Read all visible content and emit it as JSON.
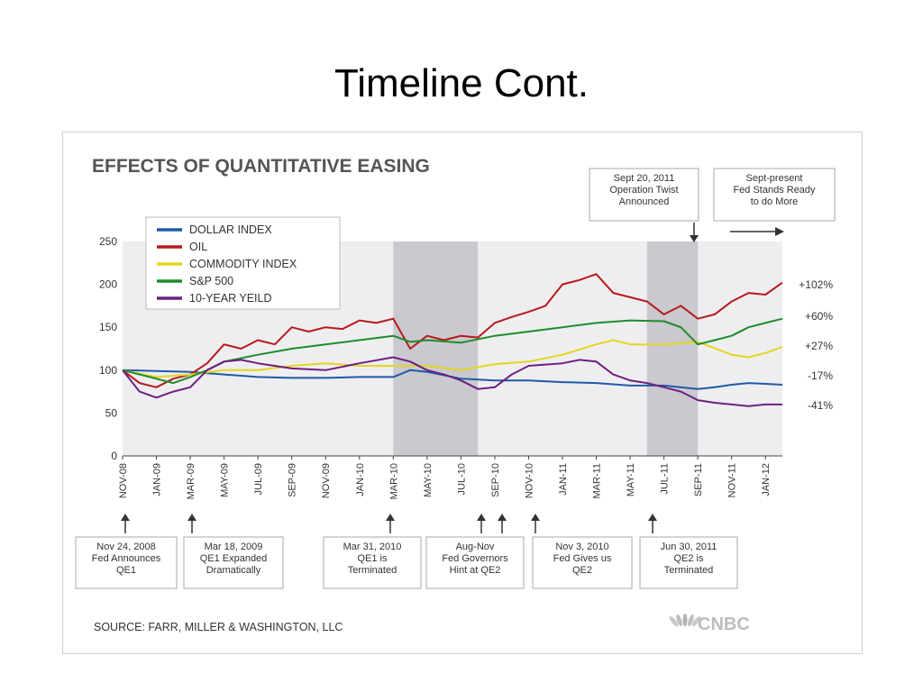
{
  "slide": {
    "title": "Timeline Cont."
  },
  "chart_data": {
    "type": "line",
    "title": "EFFECTS OF QUANTITATIVE EASING",
    "source": "SOURCE: FARR, MILLER & WASHINGTON, LLC",
    "logo": "CNBC",
    "ylim": [
      0,
      250
    ],
    "yticks": [
      "0",
      "50",
      "100",
      "150",
      "200",
      "250"
    ],
    "xticks": [
      "NOV-08",
      "JAN-09",
      "MAR-09",
      "MAY-09",
      "JUL-09",
      "SEP-09",
      "NOV-09",
      "JAN-10",
      "MAR-10",
      "MAY-10",
      "JUL-10",
      "SEP-10",
      "NOV-10",
      "JAN-11",
      "MAR-11",
      "MAY-11",
      "JUL-11",
      "SEP-11",
      "NOV-11",
      "JAN-12"
    ],
    "grid": false,
    "legend": "top-left",
    "shaded_periods": [
      {
        "from": "2010-03",
        "to": "2010-08"
      },
      {
        "from": "2011-06",
        "to": "2011-09"
      }
    ],
    "series": [
      {
        "name": "DOLLAR INDEX",
        "color": "#1f5aa6",
        "end_label": "-17%",
        "points": [
          [
            0,
            100
          ],
          [
            2,
            99
          ],
          [
            4,
            98
          ],
          [
            6,
            95
          ],
          [
            8,
            92
          ],
          [
            10,
            91
          ],
          [
            12,
            91
          ],
          [
            14,
            92
          ],
          [
            16,
            92
          ],
          [
            17,
            100
          ],
          [
            18,
            98
          ],
          [
            20,
            90
          ],
          [
            22,
            88
          ],
          [
            24,
            88
          ],
          [
            26,
            86
          ],
          [
            28,
            85
          ],
          [
            30,
            82
          ],
          [
            32,
            82
          ],
          [
            34,
            78
          ],
          [
            35,
            80
          ],
          [
            36,
            83
          ],
          [
            37,
            85
          ],
          [
            38,
            84
          ],
          [
            39,
            83
          ]
        ]
      },
      {
        "name": "OIL",
        "color": "#b8191b",
        "end_label": "+102%",
        "points": [
          [
            0,
            100
          ],
          [
            1,
            85
          ],
          [
            2,
            80
          ],
          [
            3,
            90
          ],
          [
            4,
            95
          ],
          [
            5,
            108
          ],
          [
            6,
            130
          ],
          [
            7,
            125
          ],
          [
            8,
            135
          ],
          [
            9,
            130
          ],
          [
            10,
            150
          ],
          [
            11,
            145
          ],
          [
            12,
            150
          ],
          [
            13,
            148
          ],
          [
            14,
            158
          ],
          [
            15,
            155
          ],
          [
            16,
            160
          ],
          [
            17,
            125
          ],
          [
            18,
            140
          ],
          [
            19,
            135
          ],
          [
            20,
            140
          ],
          [
            21,
            138
          ],
          [
            22,
            155
          ],
          [
            23,
            162
          ],
          [
            24,
            168
          ],
          [
            25,
            175
          ],
          [
            26,
            200
          ],
          [
            27,
            205
          ],
          [
            28,
            212
          ],
          [
            29,
            190
          ],
          [
            30,
            185
          ],
          [
            31,
            180
          ],
          [
            32,
            165
          ],
          [
            33,
            175
          ],
          [
            34,
            160
          ],
          [
            35,
            165
          ],
          [
            36,
            180
          ],
          [
            37,
            190
          ],
          [
            38,
            188
          ],
          [
            39,
            202
          ]
        ]
      },
      {
        "name": "COMMODITY INDEX",
        "color": "#e5d51f",
        "end_label": "+27%",
        "points": [
          [
            0,
            100
          ],
          [
            2,
            92
          ],
          [
            4,
            95
          ],
          [
            6,
            100
          ],
          [
            8,
            100
          ],
          [
            10,
            105
          ],
          [
            12,
            108
          ],
          [
            14,
            105
          ],
          [
            16,
            105
          ],
          [
            18,
            105
          ],
          [
            20,
            100
          ],
          [
            22,
            107
          ],
          [
            24,
            110
          ],
          [
            26,
            118
          ],
          [
            28,
            130
          ],
          [
            29,
            135
          ],
          [
            30,
            130
          ],
          [
            32,
            130
          ],
          [
            34,
            133
          ],
          [
            36,
            118
          ],
          [
            37,
            115
          ],
          [
            38,
            120
          ],
          [
            39,
            127
          ]
        ]
      },
      {
        "name": "S&P 500",
        "color": "#1e8c2a",
        "end_label": "+60%",
        "points": [
          [
            0,
            100
          ],
          [
            2,
            90
          ],
          [
            3,
            85
          ],
          [
            4,
            92
          ],
          [
            5,
            100
          ],
          [
            6,
            110
          ],
          [
            8,
            118
          ],
          [
            10,
            125
          ],
          [
            12,
            130
          ],
          [
            14,
            135
          ],
          [
            16,
            140
          ],
          [
            17,
            133
          ],
          [
            18,
            135
          ],
          [
            20,
            132
          ],
          [
            22,
            140
          ],
          [
            24,
            145
          ],
          [
            26,
            150
          ],
          [
            28,
            155
          ],
          [
            30,
            158
          ],
          [
            32,
            157
          ],
          [
            33,
            150
          ],
          [
            34,
            130
          ],
          [
            35,
            135
          ],
          [
            36,
            140
          ],
          [
            37,
            150
          ],
          [
            38,
            155
          ],
          [
            39,
            160
          ]
        ]
      },
      {
        "name": "10-YEAR YEILD",
        "color": "#6f1f7f",
        "end_label": "-41%",
        "points": [
          [
            0,
            100
          ],
          [
            1,
            75
          ],
          [
            2,
            68
          ],
          [
            3,
            75
          ],
          [
            4,
            80
          ],
          [
            5,
            100
          ],
          [
            6,
            110
          ],
          [
            7,
            112
          ],
          [
            8,
            108
          ],
          [
            10,
            102
          ],
          [
            12,
            100
          ],
          [
            14,
            108
          ],
          [
            16,
            115
          ],
          [
            17,
            110
          ],
          [
            18,
            100
          ],
          [
            19,
            95
          ],
          [
            20,
            88
          ],
          [
            21,
            78
          ],
          [
            22,
            80
          ],
          [
            23,
            95
          ],
          [
            24,
            105
          ],
          [
            26,
            108
          ],
          [
            27,
            112
          ],
          [
            28,
            110
          ],
          [
            29,
            95
          ],
          [
            30,
            88
          ],
          [
            31,
            85
          ],
          [
            32,
            80
          ],
          [
            33,
            75
          ],
          [
            34,
            65
          ],
          [
            35,
            62
          ],
          [
            36,
            60
          ],
          [
            37,
            58
          ],
          [
            38,
            60
          ],
          [
            39,
            60
          ]
        ]
      }
    ],
    "annotations_top": [
      {
        "id": "twist",
        "lines": [
          "Sept 20, 2011",
          "Operation Twist",
          "Announced"
        ],
        "arrow": "down"
      },
      {
        "id": "ready",
        "lines": [
          "Sept-present",
          "Fed Stands Ready",
          "to do More"
        ],
        "arrow": "right"
      }
    ],
    "annotations_bottom": [
      {
        "id": "qe1",
        "lines": [
          "Nov 24, 2008",
          "Fed Announces",
          "QE1"
        ]
      },
      {
        "id": "qe1x",
        "lines": [
          "Mar 18, 2009",
          "QE1 Expanded",
          "Dramatically"
        ]
      },
      {
        "id": "qe1t",
        "lines": [
          "Mar 31, 2010",
          "QE1 is",
          "Terminated"
        ]
      },
      {
        "id": "hint",
        "lines": [
          "Aug-Nov",
          "Fed Governors",
          "Hint at QE2"
        ]
      },
      {
        "id": "qe2",
        "lines": [
          "Nov 3, 2010",
          "Fed Gives us",
          "QE2"
        ]
      },
      {
        "id": "qe2t",
        "lines": [
          "Jun 30, 2011",
          "QE2 is",
          "Terminated"
        ]
      }
    ]
  }
}
